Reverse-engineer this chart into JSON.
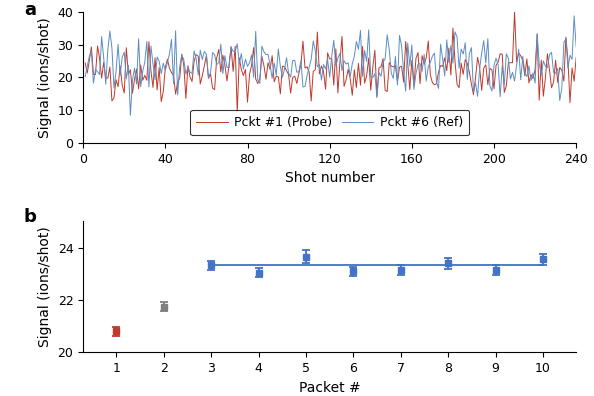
{
  "panel_a": {
    "n_shots": 240,
    "probe_mean": 22.0,
    "probe_std": 4.8,
    "ref_mean": 24.0,
    "ref_std": 4.8,
    "probe_color": "#c0392b",
    "ref_color": "#5b8ec4",
    "ylabel": "Signal (ions/shot)",
    "xlabel": "Shot number",
    "xlim": [
      0,
      240
    ],
    "ylim": [
      0,
      40
    ],
    "yticks": [
      0,
      10,
      20,
      30,
      40
    ],
    "xticks": [
      0,
      40,
      80,
      120,
      160,
      200,
      240
    ],
    "legend_probe": "Pckt #1 (Probe)",
    "legend_ref": "Pckt #6 (Ref)",
    "seed": 42
  },
  "panel_b": {
    "packets": [
      1,
      2,
      3,
      4,
      5,
      6,
      7,
      8,
      9,
      10
    ],
    "values": [
      20.8,
      21.75,
      23.32,
      23.05,
      23.65,
      23.1,
      23.15,
      23.4,
      23.15,
      23.55
    ],
    "errors": [
      0.18,
      0.18,
      0.18,
      0.18,
      0.25,
      0.18,
      0.18,
      0.22,
      0.18,
      0.22
    ],
    "colors": [
      "#c0392b",
      "#808080",
      "#4472c4",
      "#4472c4",
      "#4472c4",
      "#4472c4",
      "#4472c4",
      "#4472c4",
      "#4472c4",
      "#4472c4"
    ],
    "ref_line_y": 23.32,
    "ref_line_color": "#4472c4",
    "ylabel": "Signal (ions/shot)",
    "xlabel": "Packet #",
    "xlim": [
      0.3,
      10.7
    ],
    "ylim": [
      20,
      25
    ],
    "yticks": [
      20,
      22,
      24
    ],
    "xticks": [
      1,
      2,
      3,
      4,
      5,
      6,
      7,
      8,
      9,
      10
    ]
  },
  "label_fontsize": 10,
  "tick_fontsize": 9,
  "panel_label_fontsize": 13,
  "background_color": "#ffffff"
}
